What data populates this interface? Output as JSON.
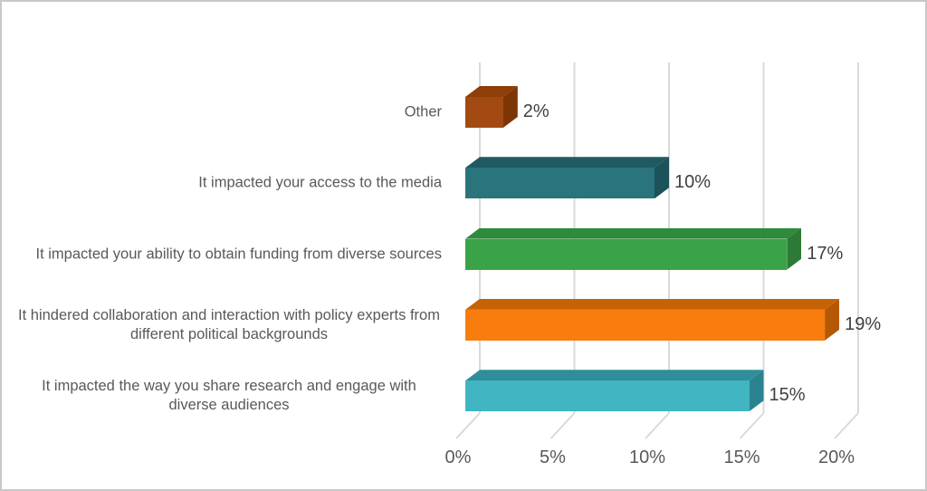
{
  "chart_data": {
    "type": "bar",
    "orientation": "horizontal",
    "style": "3d-cuboid-bars",
    "categories": [
      "Other",
      "It impacted your access to the media",
      "It impacted your ability to obtain funding from diverse sources",
      "It hindered collaboration and interaction with policy experts from different political backgrounds",
      "It impacted the way you share research and engage with diverse audiences"
    ],
    "values": [
      2,
      10,
      17,
      19,
      15
    ],
    "value_labels": [
      "2%",
      "10%",
      "17%",
      "19%",
      "15%"
    ],
    "bar_colors_front": [
      "#A34A12",
      "#2A747C",
      "#3AA347",
      "#F87D0E",
      "#41B5C2"
    ],
    "bar_colors_top": [
      "#8F3E08",
      "#1F5A60",
      "#2E8B3C",
      "#C66306",
      "#2F8E9A"
    ],
    "bar_colors_side": [
      "#7E3506",
      "#1C525A",
      "#2B7A36",
      "#B55804",
      "#2B8390"
    ],
    "x_ticks": [
      "0%",
      "5%",
      "10%",
      "15%",
      "20%"
    ],
    "x_tick_values": [
      0,
      5,
      10,
      15,
      20
    ],
    "xlim": [
      0,
      20
    ],
    "grid": true,
    "legend": false,
    "title": "",
    "xlabel": "",
    "ylabel": ""
  },
  "colors": {
    "background": "#FFFFFF",
    "canvas_border": "#C8C8C8",
    "gridline": "#D9D9D9",
    "category_label": "#595959",
    "value_label": "#404040",
    "tick_label": "#595959"
  }
}
